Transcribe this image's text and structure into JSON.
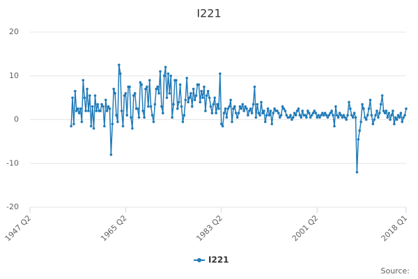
{
  "chart_data": {
    "type": "line",
    "title": "I221",
    "source": "Source:",
    "categories": [
      "1947 Q2",
      null,
      null,
      null,
      null,
      null,
      null,
      null,
      null,
      null,
      null,
      null,
      null,
      null,
      null,
      null,
      null,
      null,
      null,
      null,
      null,
      null,
      null,
      null,
      null,
      null,
      null,
      null,
      null,
      null,
      null,
      null,
      null,
      null,
      null,
      null,
      null,
      null,
      null,
      null,
      null,
      null,
      null,
      null,
      null,
      null,
      null,
      null,
      null,
      null,
      null,
      null,
      null,
      null,
      null,
      null,
      null,
      null,
      null,
      null,
      null,
      null,
      null,
      null,
      null,
      null,
      null,
      null,
      null,
      null,
      null,
      null,
      "1965 Q2",
      null,
      null,
      null,
      null,
      null,
      null,
      null,
      null,
      null,
      null,
      null,
      null,
      null,
      null,
      null,
      null,
      null,
      null,
      null,
      null,
      null,
      null,
      null,
      null,
      null,
      null,
      null,
      null,
      null,
      null,
      null,
      null,
      null,
      null,
      null,
      null,
      null,
      null,
      null,
      null,
      null,
      null,
      null,
      null,
      null,
      null,
      null,
      null,
      null,
      null,
      null,
      null,
      null,
      null,
      null,
      null,
      null,
      null,
      null,
      null,
      null,
      null,
      null,
      null,
      null,
      null,
      null,
      null,
      null,
      null,
      null,
      "1983 Q2",
      null,
      null,
      null,
      null,
      null,
      null,
      null,
      null,
      null,
      null,
      null,
      null,
      null,
      null,
      null,
      null,
      null,
      null,
      null,
      null,
      null,
      null,
      null,
      null,
      null,
      null,
      null,
      null,
      null,
      null,
      null,
      null,
      null,
      null,
      null,
      null,
      null,
      null,
      null,
      null,
      null,
      null,
      null,
      null,
      null,
      null,
      null,
      null,
      null,
      null,
      null,
      null,
      null,
      null,
      null,
      null,
      null,
      null,
      null,
      null,
      null,
      null,
      null,
      null,
      null,
      null,
      null,
      null,
      null,
      null,
      null,
      "2001 Q2",
      null,
      null,
      null,
      null,
      null,
      null,
      null,
      null,
      null,
      null,
      null,
      null,
      null,
      null,
      null,
      null,
      null,
      null,
      null,
      null,
      null,
      null,
      null,
      null,
      null,
      null,
      null,
      null,
      null,
      null,
      null,
      null,
      null,
      null,
      null,
      null,
      null,
      null,
      null,
      null,
      null,
      null,
      null,
      null,
      null,
      null,
      null,
      null,
      null,
      null,
      null,
      null,
      null,
      null,
      null,
      null,
      null,
      null,
      null,
      null,
      null,
      null,
      null,
      null,
      null,
      null,
      "2018 Q1"
    ],
    "series": [
      {
        "name": "I221",
        "color": "#1f7ab8",
        "values": [
          null,
          null,
          null,
          null,
          null,
          null,
          null,
          null,
          null,
          null,
          null,
          null,
          null,
          null,
          null,
          null,
          null,
          null,
          null,
          null,
          null,
          null,
          null,
          null,
          null,
          null,
          null,
          null,
          null,
          null,
          null,
          -1.5,
          5,
          -1,
          6.5,
          2,
          2.5,
          1.5,
          2.5,
          -0.5,
          9,
          5,
          2,
          7,
          2,
          5.5,
          -1.5,
          3,
          -2,
          5.5,
          2,
          3.5,
          2,
          2,
          3.5,
          3,
          -1.5,
          4.5,
          2,
          3,
          2.5,
          -8,
          -1,
          7,
          6,
          1,
          -0.5,
          12.5,
          10.5,
          2,
          -1.5,
          5.5,
          6,
          1,
          7.5,
          7.5,
          0.5,
          -2,
          5.5,
          6,
          2.5,
          2.5,
          0.5,
          8.5,
          8,
          2,
          0.5,
          7,
          7.5,
          3,
          9,
          3,
          1,
          -0.5,
          3.5,
          7,
          7.5,
          6,
          11,
          3,
          1.5,
          10,
          12,
          5,
          10.5,
          6,
          10,
          0.5,
          3.5,
          9,
          9,
          2.5,
          4,
          8,
          3,
          -0.5,
          1,
          4.5,
          9.5,
          4,
          5,
          6,
          3,
          7,
          4.5,
          5.5,
          8,
          8,
          4,
          6.5,
          5,
          7.5,
          2,
          5.5,
          6.5,
          5,
          3,
          1.5,
          3.5,
          5,
          1.5,
          3.5,
          2.5,
          10.5,
          -1,
          -1.5,
          1.5,
          2.5,
          0.5,
          2.5,
          3,
          4.5,
          -0.5,
          2.5,
          3,
          1.5,
          0.5,
          1.5,
          3,
          2.5,
          3.5,
          2,
          3,
          2.5,
          1,
          2,
          2.5,
          1.5,
          3.5,
          7.5,
          0.5,
          3.5,
          1.5,
          1,
          4,
          1.5,
          2,
          -0.5,
          1,
          2.5,
          1,
          2,
          -1,
          1.5,
          2.5,
          2,
          2,
          1.5,
          0.5,
          1,
          3,
          2.5,
          2,
          1,
          0.5,
          0.5,
          1,
          0,
          0.5,
          1.5,
          1,
          2,
          2.5,
          1,
          0.5,
          2,
          1,
          1,
          0.5,
          2,
          1.5,
          0.5,
          1,
          1.5,
          2,
          1.5,
          0.5,
          1,
          0.5,
          1,
          1.5,
          1,
          1.5,
          1,
          0.5,
          1,
          1.5,
          2,
          1,
          -1.5,
          3,
          1,
          0.5,
          1.5,
          1,
          0.5,
          1,
          0.5,
          0,
          1,
          4,
          2.5,
          1,
          0.5,
          1.5,
          0.5,
          -12,
          -4.5,
          -2.5,
          -0.5,
          3.5,
          2.5,
          0.5,
          0,
          1,
          2.5,
          4.5,
          1,
          -1,
          0,
          1,
          2,
          0.5,
          1.5,
          3.5,
          5.5,
          2,
          1.5,
          2,
          0.5,
          1.5,
          0,
          1,
          2,
          -1,
          0.5,
          0,
          1,
          0.5,
          1.5,
          -0.5,
          0.5,
          1,
          2.5
        ]
      }
    ],
    "ylim": [
      -20,
      20
    ],
    "yticks": [
      -20,
      -10,
      0,
      10,
      20
    ],
    "grid": true,
    "legend": "bottom"
  }
}
